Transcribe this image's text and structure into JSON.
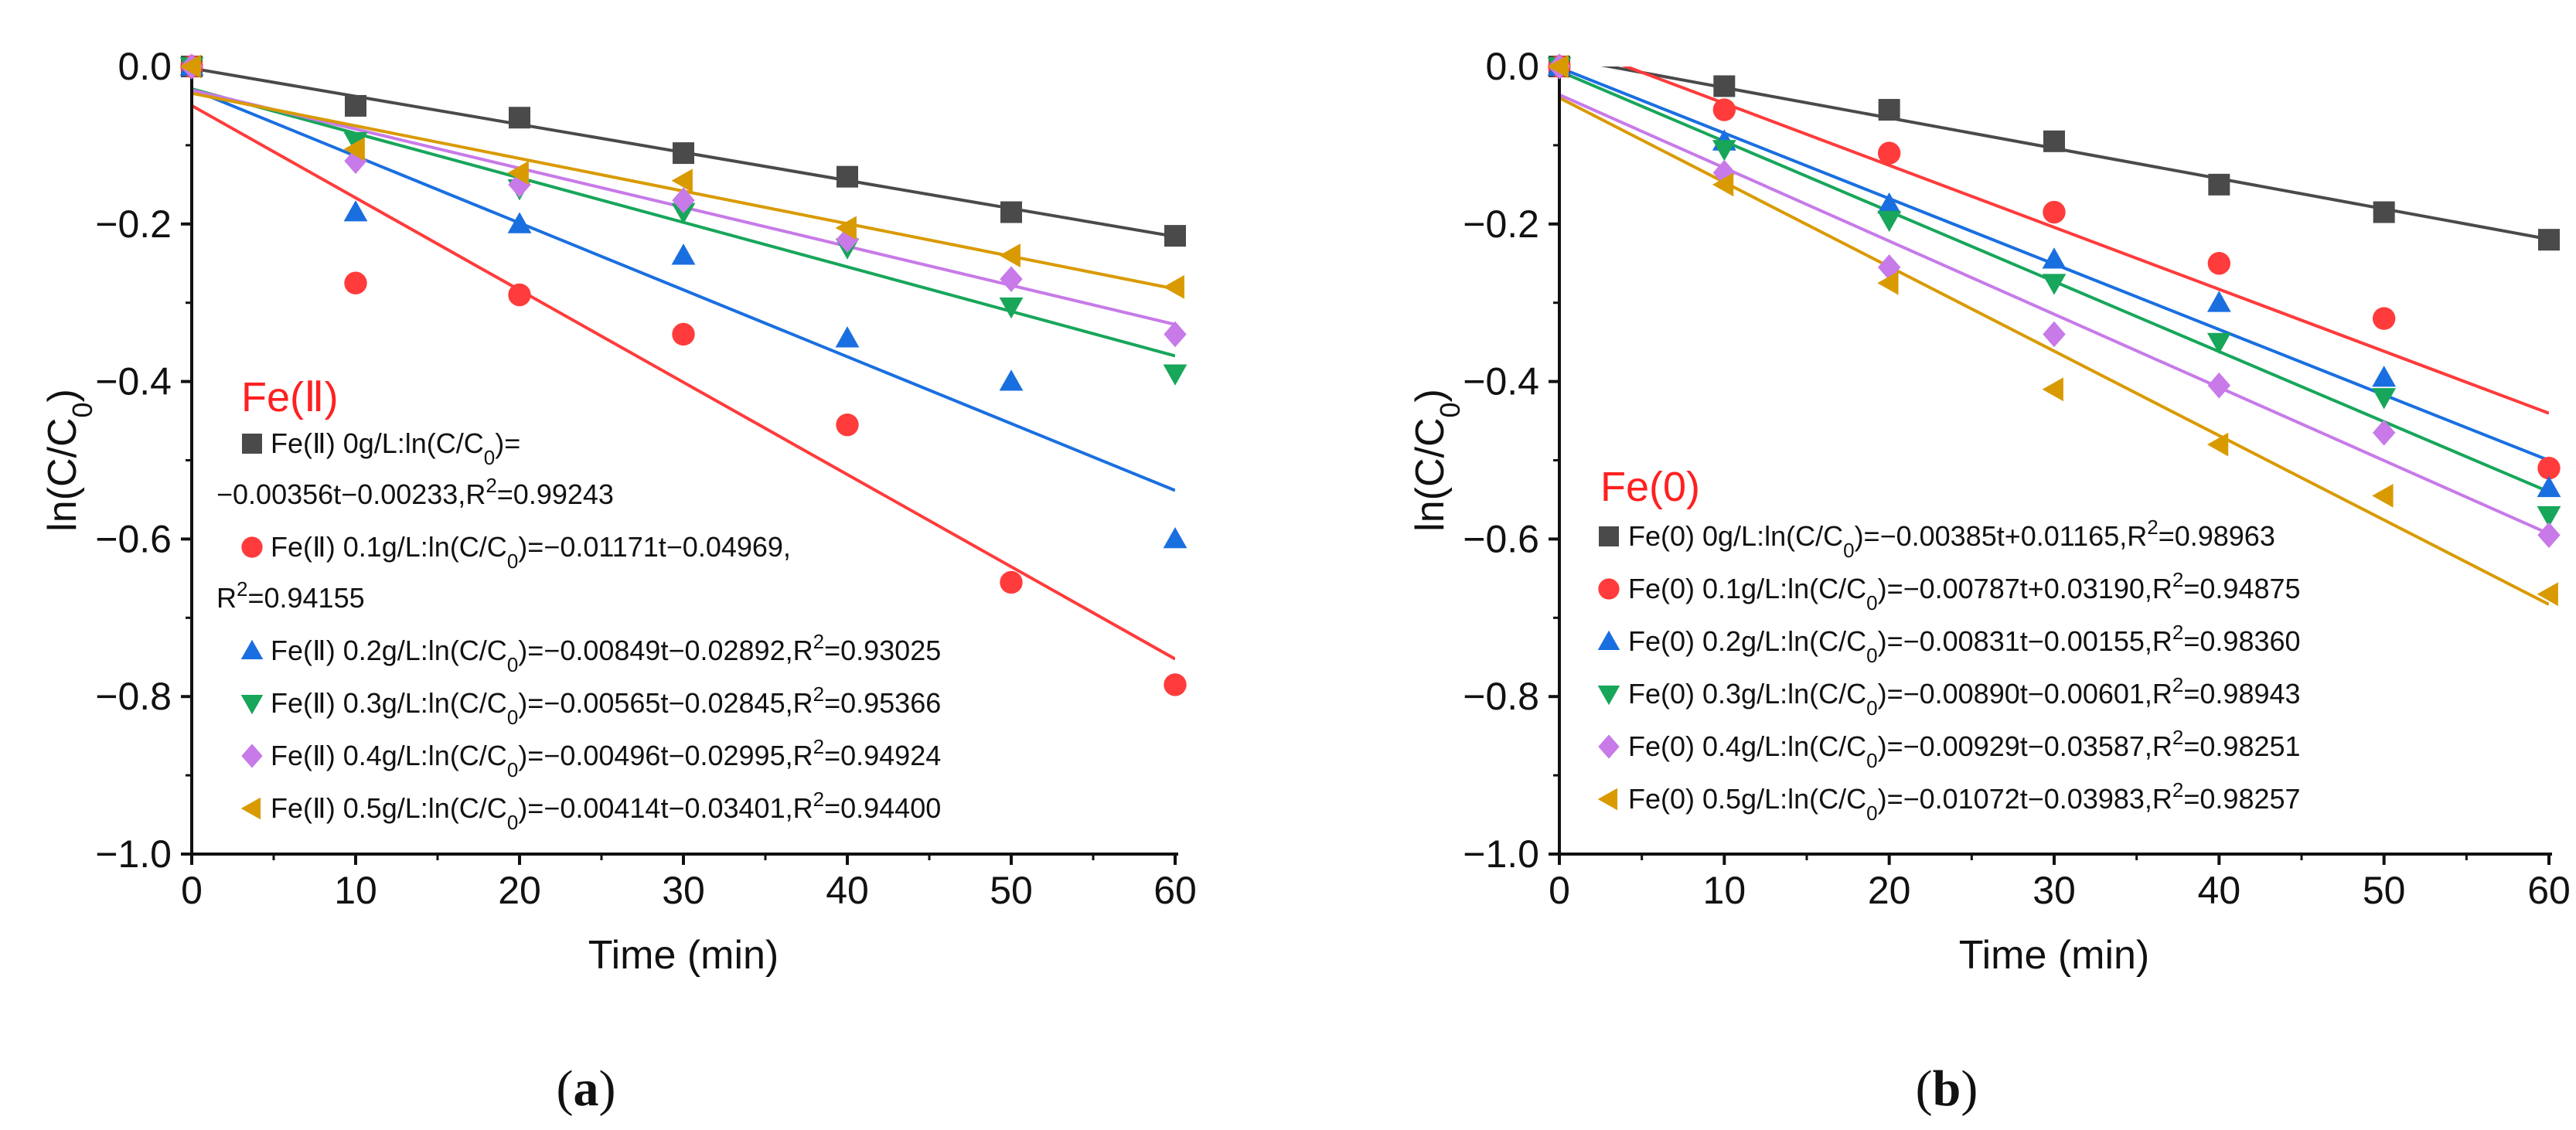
{
  "chart_data": [
    {
      "type": "scatter",
      "panel_label": "a",
      "xlabel": "Time (min)",
      "ylabel_main": "ln(C/C",
      "ylabel_sub": "0",
      "ylabel_close": ")",
      "xlim": [
        0,
        60
      ],
      "ylim": [
        -1.0,
        0.0
      ],
      "xticks": [
        0,
        10,
        20,
        30,
        40,
        50,
        60
      ],
      "xtick_labels": [
        "0",
        "10",
        "20",
        "30",
        "40",
        "50",
        "60"
      ],
      "yticks": [
        0.0,
        -0.2,
        -0.4,
        -0.6,
        -0.8,
        -1.0
      ],
      "ytick_labels": [
        "0.0",
        "−0.2",
        "−0.4",
        "−0.6",
        "−0.8",
        "−1.0"
      ],
      "group_title": "Fe(Ⅱ)",
      "group_title_color": "#ff2020",
      "x": [
        0,
        10,
        20,
        30,
        40,
        50,
        60
      ],
      "series": [
        {
          "name": "Fe(Ⅱ) 0g/L",
          "marker": "square",
          "color": "#4a4a4a",
          "values": [
            0.0,
            -0.05,
            -0.065,
            -0.11,
            -0.14,
            -0.185,
            -0.215
          ],
          "fit": {
            "slope": -0.00356,
            "intercept": -0.00233
          },
          "legend_lines": [
            [
              {
                "t": "Fe(Ⅱ) 0g/L:ln(C/C"
              },
              {
                "t": "0",
                "sub": true
              },
              {
                "t": ")="
              }
            ],
            [
              {
                "t": "−0.00356t−0.00233,R"
              },
              {
                "t": "2",
                "sup": true
              },
              {
                "t": "=0.99243"
              }
            ]
          ]
        },
        {
          "name": "Fe(Ⅱ) 0.1g/L",
          "marker": "circle",
          "color": "#ff3b3b",
          "values": [
            0.0,
            -0.275,
            -0.29,
            -0.34,
            -0.455,
            -0.655,
            -0.785
          ],
          "fit": {
            "slope": -0.01171,
            "intercept": -0.04969
          },
          "legend_lines": [
            [
              {
                "t": "Fe(Ⅱ) 0.1g/L:ln(C/C"
              },
              {
                "t": "0",
                "sub": true
              },
              {
                "t": ")=−0.01171t−0.04969,"
              }
            ],
            [
              {
                "t": "R"
              },
              {
                "t": "2",
                "sup": true
              },
              {
                "t": "=0.94155"
              }
            ]
          ]
        },
        {
          "name": "Fe(Ⅱ) 0.2g/L",
          "marker": "triangle-up",
          "color": "#1a6fe0",
          "values": [
            0.0,
            -0.185,
            -0.2,
            -0.24,
            -0.345,
            -0.4,
            -0.6
          ],
          "fit": {
            "slope": -0.00849,
            "intercept": -0.02892
          },
          "legend_lines": [
            [
              {
                "t": "Fe(Ⅱ) 0.2g/L:ln(C/C"
              },
              {
                "t": "0",
                "sub": true
              },
              {
                "t": ")=−0.00849t−0.02892,R"
              },
              {
                "t": "2",
                "sup": true
              },
              {
                "t": "=0.93025"
              }
            ]
          ]
        },
        {
          "name": "Fe(Ⅱ) 0.3g/L",
          "marker": "triangle-down",
          "color": "#17a65a",
          "values": [
            0.0,
            -0.095,
            -0.155,
            -0.185,
            -0.23,
            -0.305,
            -0.39
          ],
          "fit": {
            "slope": -0.00565,
            "intercept": -0.02845
          },
          "legend_lines": [
            [
              {
                "t": "Fe(Ⅱ) 0.3g/L:ln(C/C"
              },
              {
                "t": "0",
                "sub": true
              },
              {
                "t": ")=−0.00565t−0.02845,R"
              },
              {
                "t": "2",
                "sup": true
              },
              {
                "t": "=0.95366"
              }
            ]
          ]
        },
        {
          "name": "Fe(Ⅱ) 0.4g/L",
          "marker": "diamond",
          "color": "#c77ae8",
          "values": [
            0.0,
            -0.12,
            -0.15,
            -0.17,
            -0.22,
            -0.27,
            -0.34
          ],
          "fit": {
            "slope": -0.00496,
            "intercept": -0.02995
          },
          "legend_lines": [
            [
              {
                "t": "Fe(Ⅱ) 0.4g/L:ln(C/C"
              },
              {
                "t": "0",
                "sub": true
              },
              {
                "t": ")=−0.00496t−0.02995,R"
              },
              {
                "t": "2",
                "sup": true
              },
              {
                "t": "=0.94924"
              }
            ]
          ]
        },
        {
          "name": "Fe(Ⅱ) 0.5g/L",
          "marker": "triangle-left",
          "color": "#d99a00",
          "values": [
            0.0,
            -0.105,
            -0.135,
            -0.145,
            -0.205,
            -0.24,
            -0.28
          ],
          "fit": {
            "slope": -0.00414,
            "intercept": -0.03401
          },
          "legend_lines": [
            [
              {
                "t": "Fe(Ⅱ) 0.5g/L:ln(C/C"
              },
              {
                "t": "0",
                "sub": true
              },
              {
                "t": ")=−0.00414t−0.03401,R"
              },
              {
                "t": "2",
                "sup": true
              },
              {
                "t": "=0.94400"
              }
            ]
          ]
        }
      ]
    },
    {
      "type": "scatter",
      "panel_label": "b",
      "xlabel": "Time (min)",
      "ylabel_main": "ln(C/C",
      "ylabel_sub": "0",
      "ylabel_close": ")",
      "xlim": [
        0,
        60
      ],
      "ylim": [
        -1.0,
        0.0
      ],
      "xticks": [
        0,
        10,
        20,
        30,
        40,
        50,
        60
      ],
      "xtick_labels": [
        "0",
        "10",
        "20",
        "30",
        "40",
        "50",
        "60"
      ],
      "yticks": [
        0.0,
        -0.2,
        -0.4,
        -0.6,
        -0.8,
        -1.0
      ],
      "ytick_labels": [
        "0.0",
        "−0.2",
        "−0.4",
        "−0.6",
        "−0.8",
        "−1.0"
      ],
      "group_title": "Fe(0)",
      "group_title_color": "#ff2020",
      "x": [
        0,
        10,
        20,
        30,
        40,
        50,
        60
      ],
      "series": [
        {
          "name": "Fe(0) 0g/L",
          "marker": "square",
          "color": "#4a4a4a",
          "values": [
            0.0,
            -0.025,
            -0.055,
            -0.095,
            -0.15,
            -0.185,
            -0.22
          ],
          "fit": {
            "slope": -0.00385,
            "intercept": 0.01165
          },
          "legend_lines": [
            [
              {
                "t": "Fe(0) 0g/L:ln(C/C"
              },
              {
                "t": "0",
                "sub": true
              },
              {
                "t": ")=−0.00385t+0.01165,R"
              },
              {
                "t": "2",
                "sup": true
              },
              {
                "t": "=0.98963"
              }
            ]
          ]
        },
        {
          "name": "Fe(0) 0.1g/L",
          "marker": "circle",
          "color": "#ff3b3b",
          "values": [
            0.0,
            -0.055,
            -0.11,
            -0.185,
            -0.25,
            -0.32,
            -0.51
          ],
          "fit": {
            "slope": -0.00787,
            "intercept": 0.0319
          },
          "legend_lines": [
            [
              {
                "t": "Fe(0) 0.1g/L:ln(C/C"
              },
              {
                "t": "0",
                "sub": true
              },
              {
                "t": ")=−0.00787t+0.03190,R"
              },
              {
                "t": "2",
                "sup": true
              },
              {
                "t": "=0.94875"
              }
            ]
          ]
        },
        {
          "name": "Fe(0) 0.2g/L",
          "marker": "triangle-up",
          "color": "#1a6fe0",
          "values": [
            0.0,
            -0.095,
            -0.175,
            -0.245,
            -0.3,
            -0.395,
            -0.535
          ],
          "fit": {
            "slope": -0.00831,
            "intercept": -0.00155
          },
          "legend_lines": [
            [
              {
                "t": "Fe(0) 0.2g/L:ln(C/C"
              },
              {
                "t": "0",
                "sub": true
              },
              {
                "t": ")=−0.00831t−0.00155,R"
              },
              {
                "t": "2",
                "sup": true
              },
              {
                "t": "=0.98360"
              }
            ]
          ]
        },
        {
          "name": "Fe(0) 0.3g/L",
          "marker": "triangle-down",
          "color": "#17a65a",
          "values": [
            0.0,
            -0.105,
            -0.195,
            -0.275,
            -0.35,
            -0.42,
            -0.57
          ],
          "fit": {
            "slope": -0.0089,
            "intercept": -0.00601
          },
          "legend_lines": [
            [
              {
                "t": "Fe(0) 0.3g/L:ln(C/C"
              },
              {
                "t": "0",
                "sub": true
              },
              {
                "t": ")=−0.00890t−0.00601,R"
              },
              {
                "t": "2",
                "sup": true
              },
              {
                "t": "=0.98943"
              }
            ]
          ]
        },
        {
          "name": "Fe(0) 0.4g/L",
          "marker": "diamond",
          "color": "#c77ae8",
          "values": [
            0.0,
            -0.135,
            -0.255,
            -0.34,
            -0.405,
            -0.465,
            -0.595
          ],
          "fit": {
            "slope": -0.00929,
            "intercept": -0.03587
          },
          "legend_lines": [
            [
              {
                "t": "Fe(0) 0.4g/L:ln(C/C"
              },
              {
                "t": "0",
                "sub": true
              },
              {
                "t": ")=−0.00929t−0.03587,R"
              },
              {
                "t": "2",
                "sup": true
              },
              {
                "t": "=0.98251"
              }
            ]
          ]
        },
        {
          "name": "Fe(0) 0.5g/L",
          "marker": "triangle-left",
          "color": "#d99a00",
          "values": [
            0.0,
            -0.15,
            -0.275,
            -0.41,
            -0.48,
            -0.545,
            -0.67
          ],
          "fit": {
            "slope": -0.01072,
            "intercept": -0.03983
          },
          "legend_lines": [
            [
              {
                "t": "Fe(0) 0.5g/L:ln(C/C"
              },
              {
                "t": "0",
                "sub": true
              },
              {
                "t": ")=−0.01072t−0.03983,R"
              },
              {
                "t": "2",
                "sup": true
              },
              {
                "t": "=0.98257"
              }
            ]
          ]
        }
      ]
    }
  ]
}
